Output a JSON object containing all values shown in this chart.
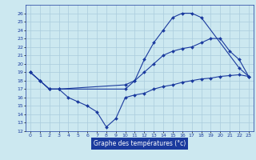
{
  "xlabel": "Graphe des températures (°c)",
  "bg_color": "#cce8f0",
  "grid_color": "#aaccdd",
  "line_color": "#1a3a9e",
  "ylim": [
    12,
    27
  ],
  "xlim": [
    -0.5,
    23.5
  ],
  "yticks": [
    12,
    13,
    14,
    15,
    16,
    17,
    18,
    19,
    20,
    21,
    22,
    23,
    24,
    25,
    26
  ],
  "xticks": [
    0,
    1,
    2,
    3,
    4,
    5,
    6,
    7,
    8,
    9,
    10,
    11,
    12,
    13,
    14,
    15,
    16,
    17,
    18,
    19,
    20,
    21,
    22,
    23
  ],
  "series1_x": [
    0,
    1,
    2,
    3,
    10,
    11,
    12,
    13,
    14,
    15,
    16,
    17,
    18,
    22,
    23
  ],
  "series1_y": [
    19.0,
    18.0,
    17.0,
    17.0,
    17.0,
    18.0,
    20.5,
    22.5,
    24.0,
    25.5,
    26.0,
    26.0,
    25.5,
    19.5,
    18.5
  ],
  "series2_x": [
    0,
    1,
    2,
    3,
    4,
    5,
    6,
    7,
    8,
    9,
    10,
    11,
    12,
    13,
    14,
    15,
    16,
    17,
    18,
    19,
    20,
    21,
    22,
    23
  ],
  "series2_y": [
    19.0,
    18.0,
    17.0,
    17.0,
    16.0,
    15.5,
    15.0,
    14.3,
    12.5,
    13.5,
    16.0,
    16.3,
    16.5,
    17.0,
    17.3,
    17.5,
    17.8,
    18.0,
    18.2,
    18.3,
    18.5,
    18.6,
    18.7,
    18.5
  ],
  "series3_x": [
    0,
    1,
    2,
    3,
    10,
    11,
    12,
    13,
    14,
    15,
    16,
    17,
    18,
    19,
    20,
    21,
    22,
    23
  ],
  "series3_y": [
    19.0,
    18.0,
    17.0,
    17.0,
    17.5,
    18.0,
    19.0,
    20.0,
    21.0,
    21.5,
    21.8,
    22.0,
    22.5,
    23.0,
    23.0,
    21.5,
    20.5,
    18.5
  ]
}
